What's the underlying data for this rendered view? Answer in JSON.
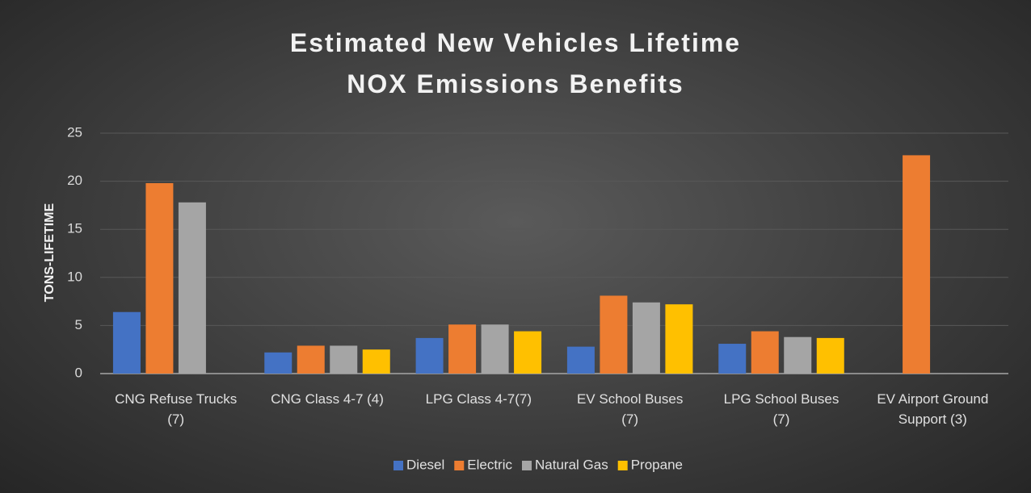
{
  "chart_data": {
    "type": "bar",
    "title": "Estimated New Vehicles Lifetime\nNOX Emissions Benefits",
    "y_label": "TONS-LIFETIME",
    "categories": [
      "CNG Refuse Trucks\n(7)",
      "CNG Class 4-7 (4)",
      "LPG Class 4-7(7)",
      "EV School Buses\n(7)",
      "LPG School Buses\n(7)",
      "EV Airport Ground\nSupport (3)"
    ],
    "series": [
      {
        "name": "Diesel",
        "color": "#4472c4",
        "values": [
          6.4,
          2.2,
          3.7,
          2.8,
          3.1,
          0
        ]
      },
      {
        "name": "Electric",
        "color": "#ed7d31",
        "values": [
          19.8,
          2.9,
          5.1,
          8.1,
          4.4,
          22.7
        ]
      },
      {
        "name": "Natural Gas",
        "color": "#a5a5a5",
        "values": [
          17.8,
          2.9,
          5.1,
          7.4,
          3.8,
          0
        ]
      },
      {
        "name": "Propane",
        "color": "#ffc000",
        "values": [
          0,
          2.5,
          4.4,
          7.2,
          3.7,
          0
        ]
      }
    ],
    "ylim": [
      0,
      25
    ],
    "yticks": [
      0,
      5,
      10,
      15,
      20,
      25
    ],
    "grid": true,
    "legend": "bottom"
  }
}
